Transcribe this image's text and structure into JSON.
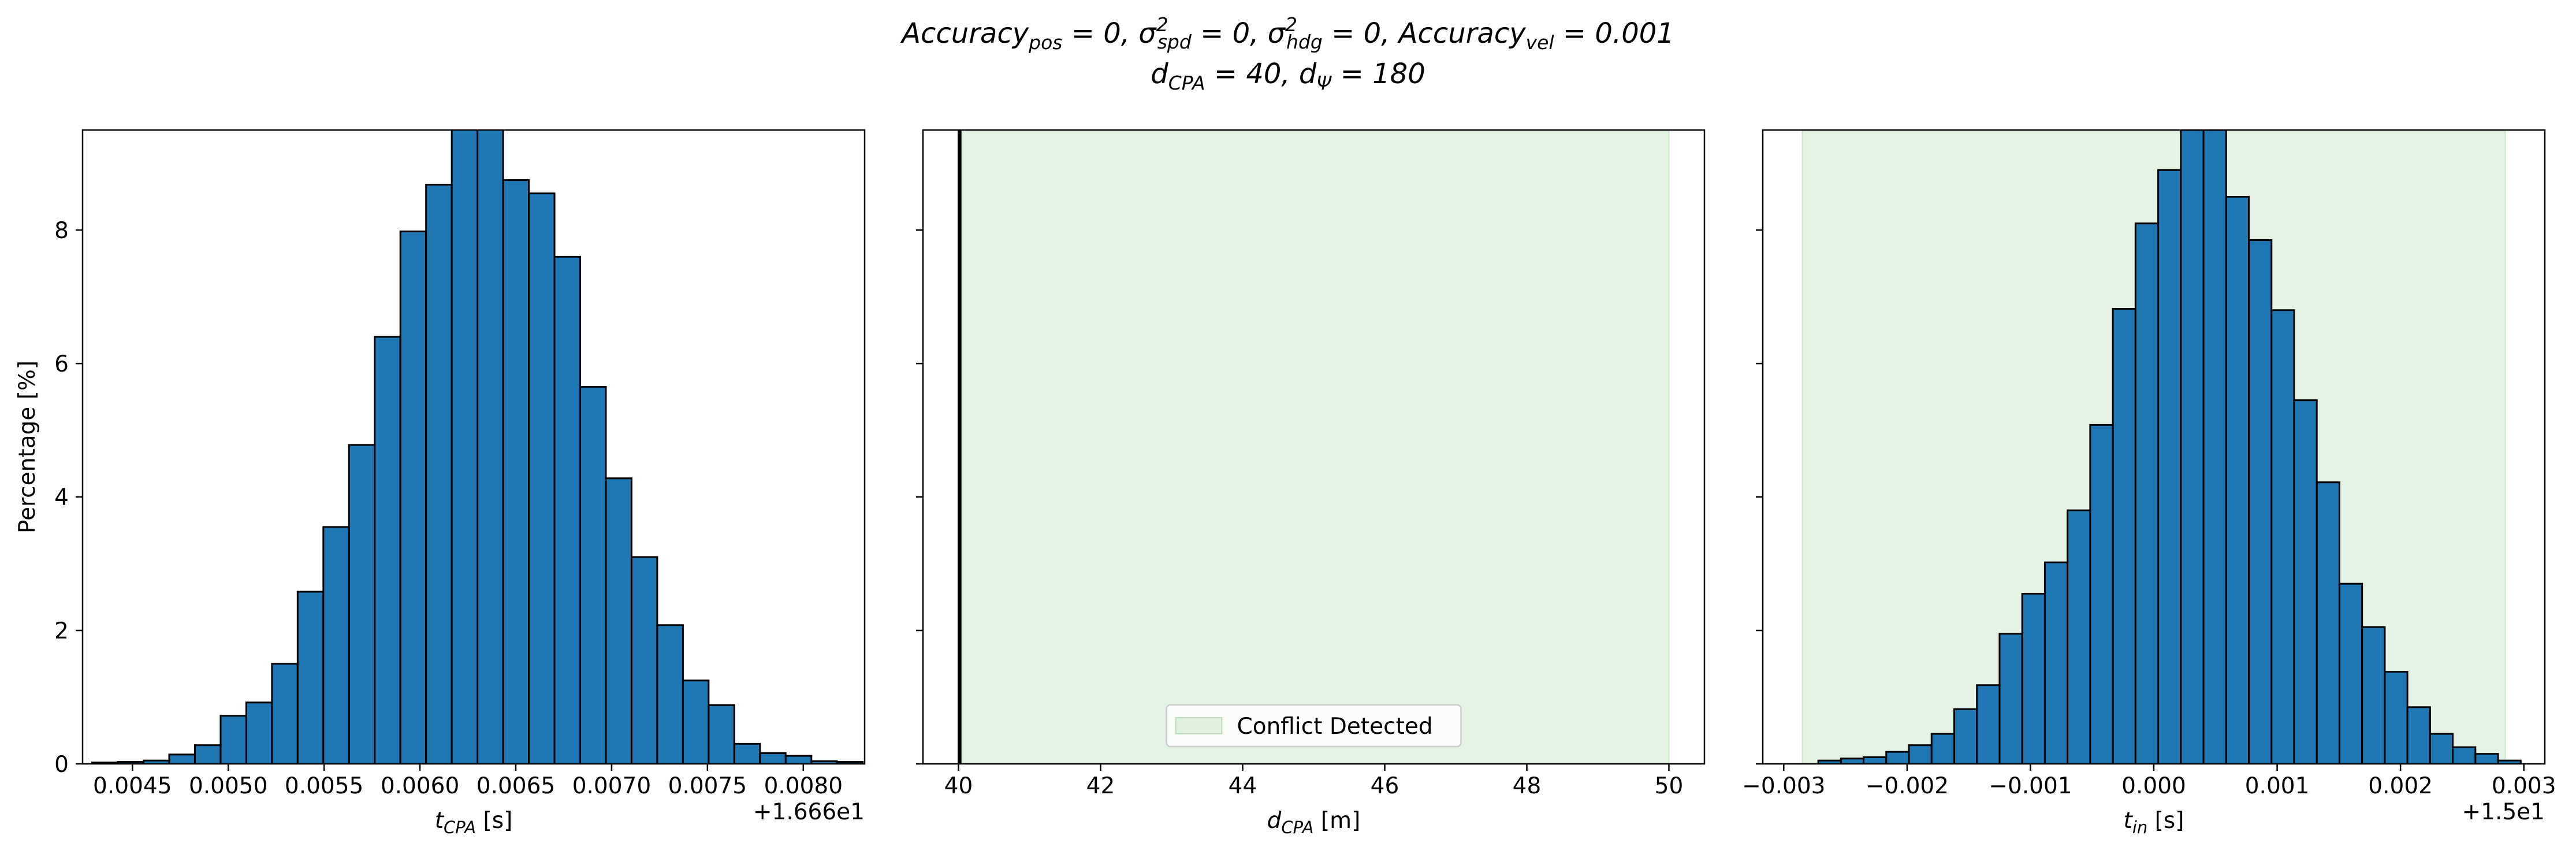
{
  "title": {
    "line1": "Accuracy_pos = 0, σ²_spd = 0, σ²_hdg = 0, Accuracy_vel = 0.001",
    "line2": "d_CPA = 40, d_Ψ = 180"
  },
  "colors": {
    "bar": "#1f77b4",
    "edge": "#000000",
    "conflict": "#2ca02c"
  },
  "chart_data": [
    {
      "type": "bar",
      "name": "t_CPA histogram",
      "xlabel": "t_CPA [s]",
      "ylabel": "Percentage [%]",
      "offset_label": "+1.666e1",
      "xlim": [
        0.00424,
        0.00832
      ],
      "ylim": [
        0,
        9.5
      ],
      "xticks": [
        0.0045,
        0.005,
        0.0055,
        0.006,
        0.0065,
        0.007,
        0.0075,
        0.008
      ],
      "xtick_labels": [
        "0.0045",
        "0.0050",
        "0.0055",
        "0.0060",
        "0.0065",
        "0.0070",
        "0.0075",
        "0.0080"
      ],
      "yticks": [
        0,
        2,
        4,
        6,
        8
      ],
      "ytick_labels": [
        "0",
        "2",
        "4",
        "6",
        "8"
      ],
      "bin_start": 0.00429,
      "bin_width": 0.000134,
      "values": [
        0.02,
        0.03,
        0.05,
        0.14,
        0.28,
        0.72,
        0.92,
        1.5,
        2.58,
        3.55,
        4.78,
        6.4,
        7.98,
        8.68,
        9.55,
        9.55,
        8.75,
        8.55,
        7.6,
        5.65,
        4.28,
        3.1,
        2.08,
        1.25,
        0.88,
        0.3,
        0.16,
        0.12,
        0.04,
        0.03
      ],
      "conflict_range": null
    },
    {
      "type": "bar",
      "name": "d_CPA histogram",
      "xlabel": "d_CPA [m]",
      "ylabel": "",
      "offset_label": "",
      "xlim": [
        39.5,
        50.5
      ],
      "ylim": [
        0,
        9.5
      ],
      "xticks": [
        40,
        42,
        44,
        46,
        48,
        50
      ],
      "xtick_labels": [
        "40",
        "42",
        "44",
        "46",
        "48",
        "50"
      ],
      "yticks": [
        0,
        2,
        4,
        6,
        8
      ],
      "ytick_labels": [
        "",
        "",
        "",
        "",
        ""
      ],
      "spikes": [
        40.0,
        40.01,
        40.02,
        40.03
      ],
      "conflict_range": [
        40,
        50
      ],
      "legend": {
        "label": "Conflict Detected",
        "position": "lower center"
      }
    },
    {
      "type": "bar",
      "name": "t_in histogram",
      "xlabel": "t_in [s]",
      "ylabel": "",
      "offset_label": "+1.5e1",
      "xlim": [
        -0.00317,
        0.00317
      ],
      "ylim": [
        0,
        9.5
      ],
      "xticks": [
        -0.003,
        -0.002,
        -0.001,
        0.0,
        0.001,
        0.002,
        0.003
      ],
      "xtick_labels": [
        "−0.003",
        "−0.002",
        "−0.001",
        "0.000",
        "0.001",
        "0.002",
        "0.003"
      ],
      "yticks": [
        0,
        2,
        4,
        6,
        8
      ],
      "ytick_labels": [
        "",
        "",
        "",
        "",
        ""
      ],
      "bin_start": -0.00272,
      "bin_width": 0.0001837,
      "values": [
        0.05,
        0.08,
        0.1,
        0.18,
        0.28,
        0.45,
        0.82,
        1.18,
        1.95,
        2.55,
        3.02,
        3.8,
        5.08,
        6.82,
        8.1,
        8.9,
        9.5,
        9.5,
        8.5,
        7.85,
        6.8,
        5.45,
        4.22,
        2.7,
        2.05,
        1.38,
        0.85,
        0.45,
        0.25,
        0.15,
        0.05
      ],
      "conflict_range": [
        -0.00285,
        0.00285
      ]
    }
  ]
}
